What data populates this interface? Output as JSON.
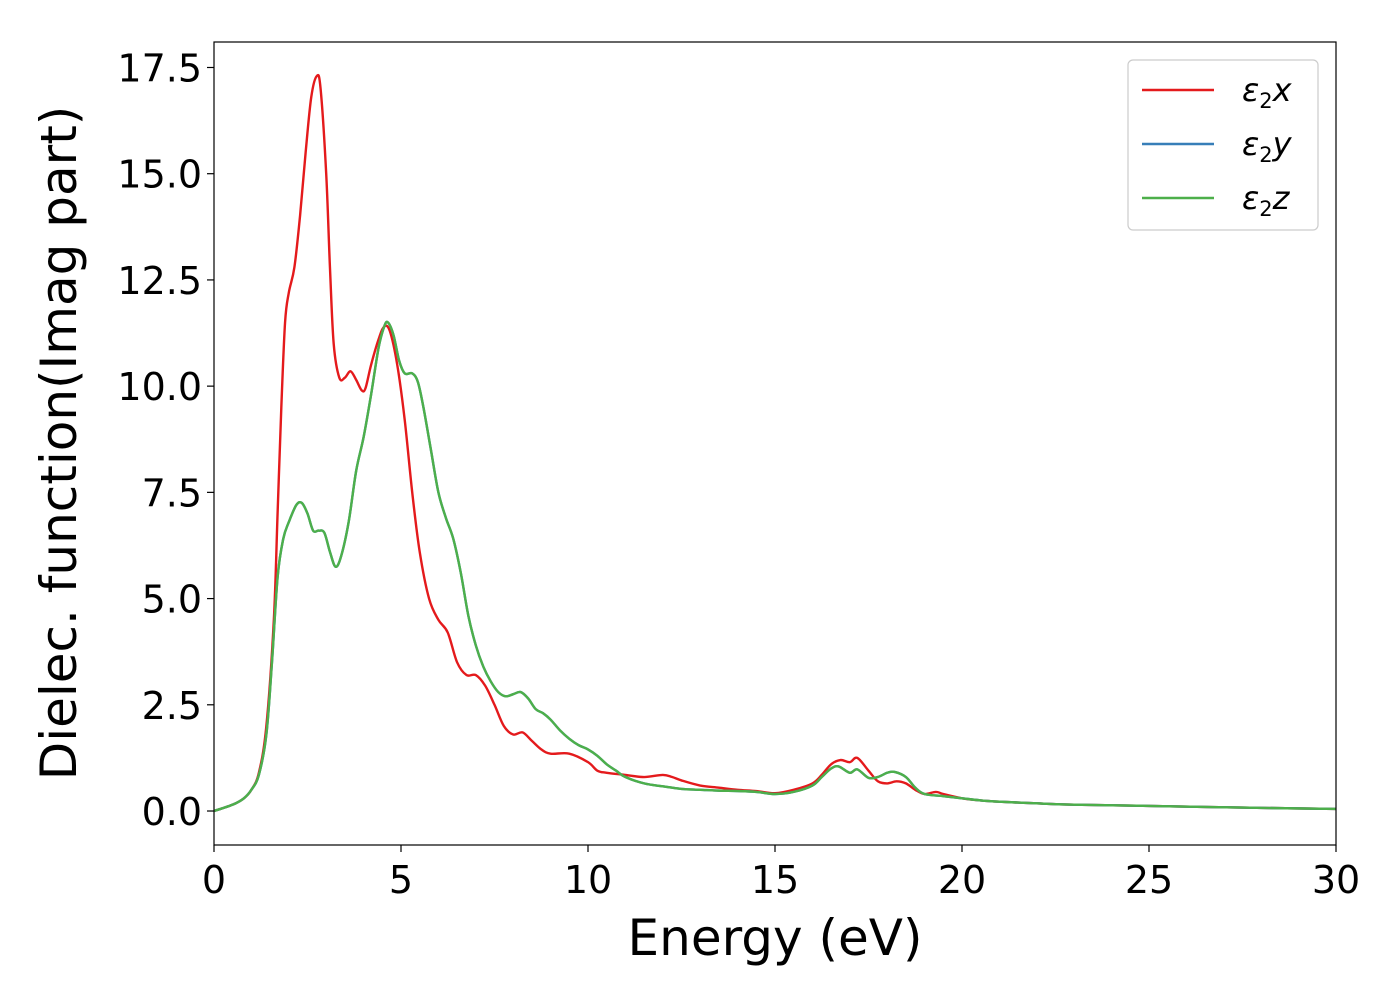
{
  "chart_data": {
    "type": "line",
    "title": "",
    "xlabel": "Energy (eV)",
    "ylabel": "Dielec. function(Imag part)",
    "xlim": [
      0,
      30
    ],
    "ylim": [
      -0.8,
      18.1
    ],
    "xticks": [
      0,
      5,
      10,
      15,
      20,
      25,
      30
    ],
    "xtick_labels": [
      "0",
      "5",
      "10",
      "15",
      "20",
      "25",
      "30"
    ],
    "yticks": [
      0.0,
      2.5,
      5.0,
      7.5,
      10.0,
      12.5,
      15.0,
      17.5
    ],
    "ytick_labels": [
      "0.0",
      "2.5",
      "5.0",
      "7.5",
      "10.0",
      "12.5",
      "15.0",
      "17.5"
    ],
    "grid": false,
    "legend_position": "top-right",
    "series": [
      {
        "name": "ε2x",
        "legend_main": "ε",
        "legend_sub": "2",
        "legend_tail": "x",
        "color": "#e41a1c",
        "points": [
          [
            0,
            0
          ],
          [
            0.5,
            0.15
          ],
          [
            0.8,
            0.3
          ],
          [
            1.0,
            0.5
          ],
          [
            1.2,
            0.9
          ],
          [
            1.4,
            2.0
          ],
          [
            1.6,
            4.5
          ],
          [
            1.7,
            7.0
          ],
          [
            1.8,
            9.5
          ],
          [
            1.9,
            11.5
          ],
          [
            2.0,
            12.2
          ],
          [
            2.15,
            12.8
          ],
          [
            2.3,
            14.0
          ],
          [
            2.45,
            15.5
          ],
          [
            2.6,
            16.8
          ],
          [
            2.75,
            17.3
          ],
          [
            2.85,
            17.0
          ],
          [
            3.0,
            15.0
          ],
          [
            3.1,
            12.8
          ],
          [
            3.2,
            11.0
          ],
          [
            3.35,
            10.2
          ],
          [
            3.5,
            10.2
          ],
          [
            3.65,
            10.35
          ],
          [
            3.8,
            10.15
          ],
          [
            3.95,
            9.9
          ],
          [
            4.05,
            9.95
          ],
          [
            4.2,
            10.5
          ],
          [
            4.4,
            11.1
          ],
          [
            4.55,
            11.4
          ],
          [
            4.7,
            11.3
          ],
          [
            4.9,
            10.5
          ],
          [
            5.1,
            9.2
          ],
          [
            5.3,
            7.5
          ],
          [
            5.5,
            6.1
          ],
          [
            5.75,
            5.0
          ],
          [
            6.0,
            4.5
          ],
          [
            6.25,
            4.2
          ],
          [
            6.5,
            3.5
          ],
          [
            6.75,
            3.2
          ],
          [
            7.0,
            3.2
          ],
          [
            7.25,
            2.95
          ],
          [
            7.5,
            2.5
          ],
          [
            7.75,
            2.0
          ],
          [
            8.0,
            1.8
          ],
          [
            8.25,
            1.85
          ],
          [
            8.5,
            1.65
          ],
          [
            8.75,
            1.45
          ],
          [
            9.0,
            1.35
          ],
          [
            9.5,
            1.35
          ],
          [
            10.0,
            1.15
          ],
          [
            10.25,
            0.95
          ],
          [
            10.5,
            0.9
          ],
          [
            11.0,
            0.85
          ],
          [
            11.5,
            0.8
          ],
          [
            12.0,
            0.85
          ],
          [
            12.25,
            0.8
          ],
          [
            12.5,
            0.72
          ],
          [
            13.0,
            0.6
          ],
          [
            13.5,
            0.55
          ],
          [
            14.0,
            0.5
          ],
          [
            14.5,
            0.47
          ],
          [
            15.0,
            0.42
          ],
          [
            15.5,
            0.5
          ],
          [
            16.0,
            0.65
          ],
          [
            16.25,
            0.85
          ],
          [
            16.5,
            1.1
          ],
          [
            16.75,
            1.2
          ],
          [
            17.0,
            1.15
          ],
          [
            17.2,
            1.25
          ],
          [
            17.5,
            0.95
          ],
          [
            17.75,
            0.7
          ],
          [
            18.0,
            0.65
          ],
          [
            18.25,
            0.7
          ],
          [
            18.5,
            0.65
          ],
          [
            18.75,
            0.5
          ],
          [
            19.0,
            0.4
          ],
          [
            19.3,
            0.45
          ],
          [
            19.5,
            0.4
          ],
          [
            20.0,
            0.3
          ],
          [
            20.5,
            0.25
          ],
          [
            21.0,
            0.22
          ],
          [
            22.0,
            0.18
          ],
          [
            23.0,
            0.15
          ],
          [
            25.0,
            0.12
          ],
          [
            27.5,
            0.08
          ],
          [
            30.0,
            0.05
          ]
        ]
      },
      {
        "name": "ε2y",
        "legend_main": "ε",
        "legend_sub": "2",
        "legend_tail": "y",
        "color": "#377eb8",
        "points": [
          [
            0,
            0
          ],
          [
            0.5,
            0.15
          ],
          [
            0.8,
            0.3
          ],
          [
            1.0,
            0.5
          ],
          [
            1.2,
            0.85
          ],
          [
            1.4,
            1.8
          ],
          [
            1.55,
            3.5
          ],
          [
            1.7,
            5.5
          ],
          [
            1.85,
            6.4
          ],
          [
            2.0,
            6.8
          ],
          [
            2.2,
            7.2
          ],
          [
            2.35,
            7.25
          ],
          [
            2.5,
            7.0
          ],
          [
            2.65,
            6.6
          ],
          [
            2.8,
            6.6
          ],
          [
            2.95,
            6.55
          ],
          [
            3.1,
            6.1
          ],
          [
            3.25,
            5.75
          ],
          [
            3.4,
            6.0
          ],
          [
            3.6,
            6.8
          ],
          [
            3.8,
            8.0
          ],
          [
            4.0,
            8.8
          ],
          [
            4.2,
            9.8
          ],
          [
            4.4,
            10.9
          ],
          [
            4.55,
            11.4
          ],
          [
            4.65,
            11.5
          ],
          [
            4.8,
            11.2
          ],
          [
            4.95,
            10.6
          ],
          [
            5.1,
            10.3
          ],
          [
            5.3,
            10.3
          ],
          [
            5.45,
            10.1
          ],
          [
            5.6,
            9.5
          ],
          [
            5.8,
            8.5
          ],
          [
            6.0,
            7.5
          ],
          [
            6.2,
            6.9
          ],
          [
            6.4,
            6.4
          ],
          [
            6.6,
            5.6
          ],
          [
            6.8,
            4.6
          ],
          [
            7.0,
            3.9
          ],
          [
            7.2,
            3.4
          ],
          [
            7.4,
            3.05
          ],
          [
            7.6,
            2.8
          ],
          [
            7.8,
            2.7
          ],
          [
            8.0,
            2.75
          ],
          [
            8.2,
            2.8
          ],
          [
            8.4,
            2.65
          ],
          [
            8.6,
            2.4
          ],
          [
            8.8,
            2.3
          ],
          [
            9.0,
            2.15
          ],
          [
            9.25,
            1.9
          ],
          [
            9.5,
            1.7
          ],
          [
            9.75,
            1.55
          ],
          [
            10.0,
            1.45
          ],
          [
            10.25,
            1.3
          ],
          [
            10.5,
            1.1
          ],
          [
            10.75,
            0.95
          ],
          [
            11.0,
            0.8
          ],
          [
            11.5,
            0.65
          ],
          [
            12.0,
            0.58
          ],
          [
            12.5,
            0.52
          ],
          [
            13.0,
            0.5
          ],
          [
            13.5,
            0.48
          ],
          [
            14.0,
            0.47
          ],
          [
            14.5,
            0.45
          ],
          [
            15.0,
            0.4
          ],
          [
            15.5,
            0.45
          ],
          [
            16.0,
            0.6
          ],
          [
            16.25,
            0.8
          ],
          [
            16.5,
            1.0
          ],
          [
            16.7,
            1.05
          ],
          [
            17.0,
            0.9
          ],
          [
            17.2,
            0.98
          ],
          [
            17.5,
            0.78
          ],
          [
            17.75,
            0.8
          ],
          [
            18.0,
            0.9
          ],
          [
            18.2,
            0.92
          ],
          [
            18.5,
            0.8
          ],
          [
            18.75,
            0.55
          ],
          [
            19.0,
            0.4
          ],
          [
            19.5,
            0.35
          ],
          [
            20.0,
            0.3
          ],
          [
            20.5,
            0.25
          ],
          [
            21.0,
            0.22
          ],
          [
            22.0,
            0.18
          ],
          [
            23.0,
            0.15
          ],
          [
            25.0,
            0.12
          ],
          [
            27.5,
            0.08
          ],
          [
            30.0,
            0.05
          ]
        ]
      },
      {
        "name": "ε2z",
        "legend_main": "ε",
        "legend_sub": "2",
        "legend_tail": "z",
        "color": "#4daf4a",
        "points": [
          [
            0,
            0
          ],
          [
            0.5,
            0.15
          ],
          [
            0.8,
            0.3
          ],
          [
            1.0,
            0.5
          ],
          [
            1.2,
            0.85
          ],
          [
            1.4,
            1.8
          ],
          [
            1.55,
            3.5
          ],
          [
            1.7,
            5.5
          ],
          [
            1.85,
            6.4
          ],
          [
            2.0,
            6.8
          ],
          [
            2.2,
            7.2
          ],
          [
            2.35,
            7.25
          ],
          [
            2.5,
            7.0
          ],
          [
            2.65,
            6.6
          ],
          [
            2.8,
            6.6
          ],
          [
            2.95,
            6.55
          ],
          [
            3.1,
            6.1
          ],
          [
            3.25,
            5.75
          ],
          [
            3.4,
            6.0
          ],
          [
            3.6,
            6.8
          ],
          [
            3.8,
            8.0
          ],
          [
            4.0,
            8.8
          ],
          [
            4.2,
            9.8
          ],
          [
            4.4,
            10.9
          ],
          [
            4.55,
            11.4
          ],
          [
            4.65,
            11.5
          ],
          [
            4.8,
            11.2
          ],
          [
            4.95,
            10.6
          ],
          [
            5.1,
            10.3
          ],
          [
            5.3,
            10.3
          ],
          [
            5.45,
            10.1
          ],
          [
            5.6,
            9.5
          ],
          [
            5.8,
            8.5
          ],
          [
            6.0,
            7.5
          ],
          [
            6.2,
            6.9
          ],
          [
            6.4,
            6.4
          ],
          [
            6.6,
            5.6
          ],
          [
            6.8,
            4.6
          ],
          [
            7.0,
            3.9
          ],
          [
            7.2,
            3.4
          ],
          [
            7.4,
            3.05
          ],
          [
            7.6,
            2.8
          ],
          [
            7.8,
            2.7
          ],
          [
            8.0,
            2.75
          ],
          [
            8.2,
            2.8
          ],
          [
            8.4,
            2.65
          ],
          [
            8.6,
            2.4
          ],
          [
            8.8,
            2.3
          ],
          [
            9.0,
            2.15
          ],
          [
            9.25,
            1.9
          ],
          [
            9.5,
            1.7
          ],
          [
            9.75,
            1.55
          ],
          [
            10.0,
            1.45
          ],
          [
            10.25,
            1.3
          ],
          [
            10.5,
            1.1
          ],
          [
            10.75,
            0.95
          ],
          [
            11.0,
            0.8
          ],
          [
            11.5,
            0.65
          ],
          [
            12.0,
            0.58
          ],
          [
            12.5,
            0.52
          ],
          [
            13.0,
            0.5
          ],
          [
            13.5,
            0.48
          ],
          [
            14.0,
            0.47
          ],
          [
            14.5,
            0.45
          ],
          [
            15.0,
            0.4
          ],
          [
            15.5,
            0.45
          ],
          [
            16.0,
            0.6
          ],
          [
            16.25,
            0.8
          ],
          [
            16.5,
            1.0
          ],
          [
            16.7,
            1.05
          ],
          [
            17.0,
            0.9
          ],
          [
            17.2,
            0.98
          ],
          [
            17.5,
            0.78
          ],
          [
            17.75,
            0.8
          ],
          [
            18.0,
            0.9
          ],
          [
            18.2,
            0.92
          ],
          [
            18.5,
            0.8
          ],
          [
            18.75,
            0.55
          ],
          [
            19.0,
            0.4
          ],
          [
            19.5,
            0.35
          ],
          [
            20.0,
            0.3
          ],
          [
            20.5,
            0.25
          ],
          [
            21.0,
            0.22
          ],
          [
            22.0,
            0.18
          ],
          [
            23.0,
            0.15
          ],
          [
            25.0,
            0.12
          ],
          [
            27.5,
            0.08
          ],
          [
            30.0,
            0.05
          ]
        ]
      }
    ]
  }
}
